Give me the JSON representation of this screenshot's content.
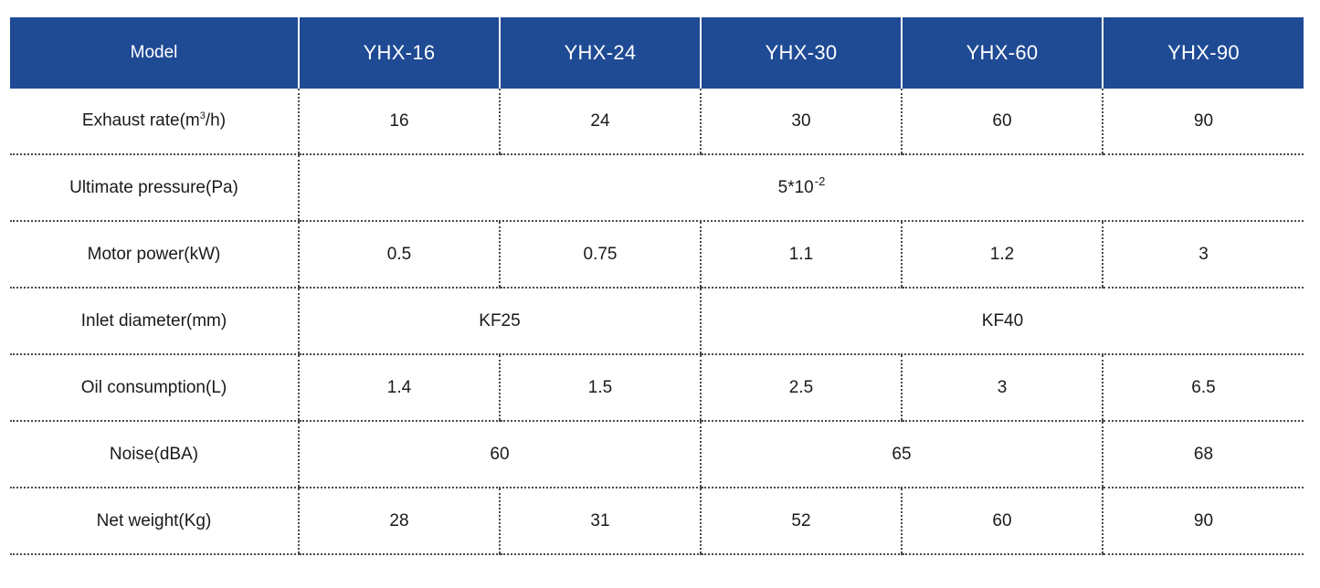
{
  "header": {
    "label": "Model",
    "models": [
      "YHX-16",
      "YHX-24",
      "YHX-30",
      "YHX-60",
      "YHX-90"
    ]
  },
  "rows": {
    "exhaust": {
      "label_prefix": "Exhaust rate(m",
      "label_sup": "3",
      "label_suffix": "/h)",
      "values": [
        "16",
        "24",
        "30",
        "60",
        "90"
      ]
    },
    "ultimate_pressure": {
      "label": "Ultimate pressure(Pa)",
      "value_base": "5*10",
      "value_exp": "-2"
    },
    "motor_power": {
      "label": "Motor power(kW)",
      "values": [
        "0.5",
        "0.75",
        "1.1",
        "1.2",
        "3"
      ]
    },
    "inlet_diameter": {
      "label": "Inlet diameter(mm)",
      "values": [
        "KF25",
        "KF40"
      ]
    },
    "oil_consumption": {
      "label": "Oil consumption(L)",
      "values": [
        "1.4",
        "1.5",
        "2.5",
        "3",
        "6.5"
      ]
    },
    "noise": {
      "label": "Noise(dBA)",
      "values": [
        "60",
        "65",
        "68"
      ]
    },
    "net_weight": {
      "label": "Net weight(Kg)",
      "values": [
        "28",
        "31",
        "52",
        "60",
        "90"
      ]
    }
  },
  "colors": {
    "header_bg": "#1f4a94",
    "header_text": "#ffffff",
    "divider": "#4a4a4a"
  }
}
